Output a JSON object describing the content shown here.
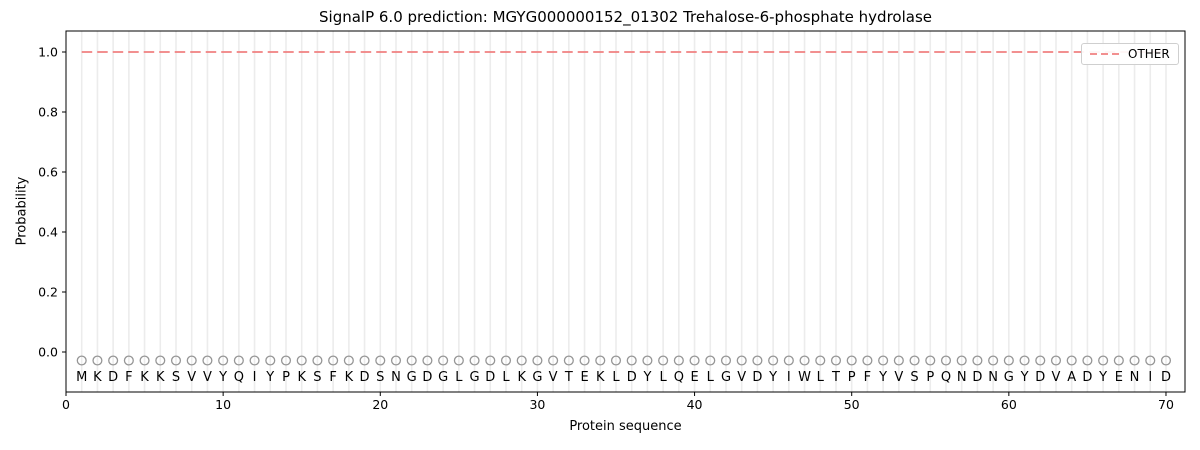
{
  "figure": {
    "title": "SignalP 6.0 prediction: MGYG000000152_01302 Trehalose-6-phosphate hydrolase",
    "xlabel": "Protein sequence",
    "ylabel": "Probability"
  },
  "legend": {
    "position": "upper right",
    "entries": [
      {
        "label": "OTHER",
        "line_style": "dashed",
        "color": "#f08080"
      }
    ]
  },
  "sequence": {
    "residues": "MKDFKKSVVYQIYPKSFKDSNGDGLGDLKGVTEKLDYLQELGVDYIWLTPFYVSPQNDNGYDVADYENID",
    "length": 70,
    "marker": "open-circle",
    "marker_color": "#969696",
    "letter_color": "#1a1a1a"
  },
  "colors": {
    "other_line": "#f08080",
    "grid": "#ececec",
    "axis": "#000000",
    "background": "#ffffff"
  },
  "chart_data": {
    "type": "line",
    "title": "SignalP 6.0 prediction: MGYG000000152_01302 Trehalose-6-phosphate hydrolase",
    "xlabel": "Protein sequence",
    "ylabel": "Probability",
    "x": [
      1,
      2,
      3,
      4,
      5,
      6,
      7,
      8,
      9,
      10,
      11,
      12,
      13,
      14,
      15,
      16,
      17,
      18,
      19,
      20,
      21,
      22,
      23,
      24,
      25,
      26,
      27,
      28,
      29,
      30,
      31,
      32,
      33,
      34,
      35,
      36,
      37,
      38,
      39,
      40,
      41,
      42,
      43,
      44,
      45,
      46,
      47,
      48,
      49,
      50,
      51,
      52,
      53,
      54,
      55,
      56,
      57,
      58,
      59,
      60,
      61,
      62,
      63,
      64,
      65,
      66,
      67,
      68,
      69,
      70
    ],
    "series": [
      {
        "name": "OTHER",
        "color": "#f08080",
        "linestyle": "dashed",
        "values": [
          1.0,
          1.0,
          1.0,
          1.0,
          1.0,
          1.0,
          1.0,
          1.0,
          1.0,
          1.0,
          1.0,
          1.0,
          1.0,
          1.0,
          1.0,
          1.0,
          1.0,
          1.0,
          1.0,
          1.0,
          1.0,
          1.0,
          1.0,
          1.0,
          1.0,
          1.0,
          1.0,
          1.0,
          1.0,
          1.0,
          1.0,
          1.0,
          1.0,
          1.0,
          1.0,
          1.0,
          1.0,
          1.0,
          1.0,
          1.0,
          1.0,
          1.0,
          1.0,
          1.0,
          1.0,
          1.0,
          1.0,
          1.0,
          1.0,
          1.0,
          1.0,
          1.0,
          1.0,
          1.0,
          1.0,
          1.0,
          1.0,
          1.0,
          1.0,
          1.0,
          1.0,
          1.0,
          1.0,
          1.0,
          1.0,
          1.0,
          1.0,
          1.0,
          1.0,
          1.0
        ]
      }
    ],
    "xticks": [
      0,
      10,
      20,
      30,
      40,
      50,
      60,
      70
    ],
    "yticks": [
      0.0,
      0.2,
      0.4,
      0.6,
      0.8,
      1.0
    ],
    "xlim": [
      0,
      71.2
    ],
    "ylim": [
      -0.135,
      1.07
    ],
    "grid": "vertical gridline at each residue position",
    "legend_position": "upper right"
  }
}
